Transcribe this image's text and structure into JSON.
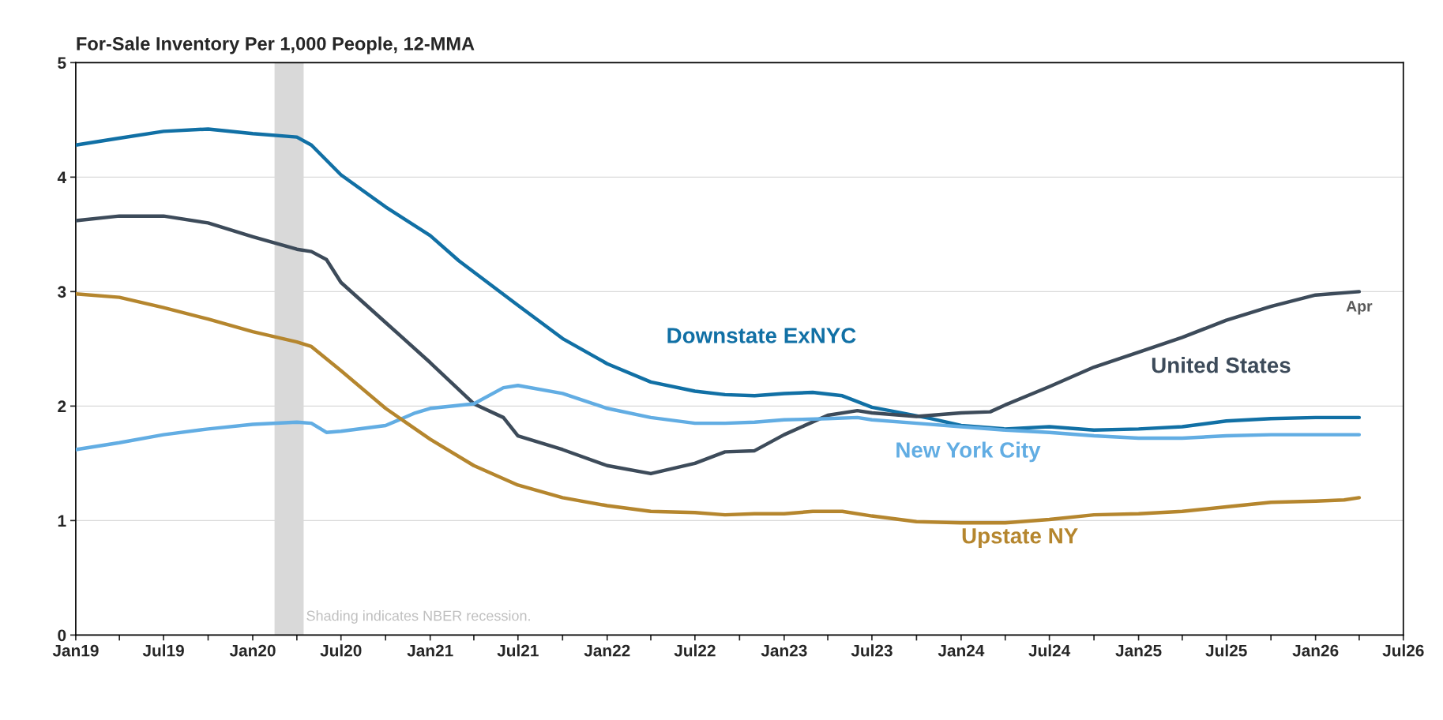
{
  "chart_data": {
    "type": "line",
    "title": "For-Sale Inventory Per 1,000 People, 12-MMA",
    "series": [
      {
        "name": "Downstate ExNYC",
        "color": "#1170a5",
        "x": [
          "2019-01",
          "2019-04",
          "2019-07",
          "2019-10",
          "2020-01",
          "2020-04",
          "2020-05",
          "2020-07",
          "2020-10",
          "2021-01",
          "2021-03",
          "2021-07",
          "2021-10",
          "2022-01",
          "2022-04",
          "2022-07",
          "2022-09",
          "2022-11",
          "2023-01",
          "2023-03",
          "2023-05",
          "2023-07",
          "2023-09",
          "2023-11",
          "2024-01",
          "2024-04",
          "2024-07",
          "2024-10",
          "2025-01",
          "2025-04",
          "2025-07",
          "2025-10",
          "2026-01",
          "2026-04"
        ],
        "values": [
          4.28,
          4.34,
          4.4,
          4.42,
          4.38,
          4.35,
          4.28,
          4.02,
          3.74,
          3.49,
          3.27,
          2.88,
          2.59,
          2.37,
          2.21,
          2.13,
          2.1,
          2.09,
          2.11,
          2.12,
          2.09,
          1.99,
          1.94,
          1.89,
          1.83,
          1.8,
          1.82,
          1.79,
          1.8,
          1.82,
          1.87,
          1.89,
          1.9,
          1.9
        ]
      },
      {
        "name": "United States",
        "color": "#3d4b5a",
        "x": [
          "2019-01",
          "2019-04",
          "2019-07",
          "2019-10",
          "2020-01",
          "2020-04",
          "2020-05",
          "2020-06",
          "2020-07",
          "2020-10",
          "2021-01",
          "2021-04",
          "2021-06",
          "2021-07",
          "2021-10",
          "2022-01",
          "2022-04",
          "2022-07",
          "2022-09",
          "2022-11",
          "2023-01",
          "2023-04",
          "2023-06",
          "2023-07",
          "2023-10",
          "2024-01",
          "2024-03",
          "2024-04",
          "2024-07",
          "2024-10",
          "2025-01",
          "2025-04",
          "2025-07",
          "2025-10",
          "2026-01",
          "2026-04"
        ],
        "values": [
          3.62,
          3.66,
          3.66,
          3.6,
          3.48,
          3.37,
          3.35,
          3.28,
          3.08,
          2.73,
          2.38,
          2.02,
          1.9,
          1.74,
          1.62,
          1.48,
          1.41,
          1.5,
          1.6,
          1.61,
          1.75,
          1.92,
          1.96,
          1.94,
          1.91,
          1.94,
          1.95,
          2.01,
          2.17,
          2.34,
          2.47,
          2.6,
          2.75,
          2.87,
          2.97,
          3.0
        ]
      },
      {
        "name": "New York City",
        "color": "#62ade3",
        "x": [
          "2019-01",
          "2019-04",
          "2019-07",
          "2019-10",
          "2020-01",
          "2020-04",
          "2020-05",
          "2020-06",
          "2020-07",
          "2020-10",
          "2020-12",
          "2021-01",
          "2021-04",
          "2021-06",
          "2021-07",
          "2021-10",
          "2022-01",
          "2022-04",
          "2022-07",
          "2022-09",
          "2022-11",
          "2023-01",
          "2023-04",
          "2023-06",
          "2023-07",
          "2023-10",
          "2024-01",
          "2024-04",
          "2024-07",
          "2024-10",
          "2025-01",
          "2025-04",
          "2025-07",
          "2025-10",
          "2026-01",
          "2026-04"
        ],
        "values": [
          1.62,
          1.68,
          1.75,
          1.8,
          1.84,
          1.86,
          1.85,
          1.77,
          1.78,
          1.83,
          1.94,
          1.98,
          2.02,
          2.16,
          2.18,
          2.11,
          1.98,
          1.9,
          1.85,
          1.85,
          1.86,
          1.88,
          1.89,
          1.9,
          1.88,
          1.85,
          1.82,
          1.79,
          1.77,
          1.74,
          1.72,
          1.72,
          1.74,
          1.75,
          1.75,
          1.75
        ]
      },
      {
        "name": "Upstate NY",
        "color": "#b5862e",
        "x": [
          "2019-01",
          "2019-04",
          "2019-07",
          "2019-10",
          "2020-01",
          "2020-04",
          "2020-05",
          "2020-07",
          "2020-10",
          "2021-01",
          "2021-04",
          "2021-07",
          "2021-10",
          "2022-01",
          "2022-04",
          "2022-07",
          "2022-09",
          "2022-11",
          "2023-01",
          "2023-03",
          "2023-05",
          "2023-07",
          "2023-10",
          "2024-01",
          "2024-04",
          "2024-07",
          "2024-10",
          "2025-01",
          "2025-04",
          "2025-07",
          "2025-10",
          "2026-01",
          "2026-03",
          "2026-04"
        ],
        "values": [
          2.98,
          2.95,
          2.86,
          2.76,
          2.65,
          2.56,
          2.52,
          2.31,
          1.98,
          1.71,
          1.48,
          1.31,
          1.2,
          1.13,
          1.08,
          1.07,
          1.05,
          1.06,
          1.06,
          1.08,
          1.08,
          1.04,
          0.99,
          0.98,
          0.98,
          1.01,
          1.05,
          1.06,
          1.08,
          1.12,
          1.16,
          1.17,
          1.18,
          1.2
        ]
      }
    ],
    "xlim": [
      "2019-01",
      "2026-07"
    ],
    "xticks": [
      {
        "value": "2019-01",
        "label": "Jan19"
      },
      {
        "value": "2019-04",
        "label": null
      },
      {
        "value": "2019-07",
        "label": "Jul19"
      },
      {
        "value": "2019-10",
        "label": null
      },
      {
        "value": "2020-01",
        "label": "Jan20"
      },
      {
        "value": "2020-04",
        "label": null
      },
      {
        "value": "2020-07",
        "label": "Jul20"
      },
      {
        "value": "2020-10",
        "label": null
      },
      {
        "value": "2021-01",
        "label": "Jan21"
      },
      {
        "value": "2021-04",
        "label": null
      },
      {
        "value": "2021-07",
        "label": "Jul21"
      },
      {
        "value": "2021-10",
        "label": null
      },
      {
        "value": "2022-01",
        "label": "Jan22"
      },
      {
        "value": "2022-04",
        "label": null
      },
      {
        "value": "2022-07",
        "label": "Jul22"
      },
      {
        "value": "2022-10",
        "label": null
      },
      {
        "value": "2023-01",
        "label": "Jan23"
      },
      {
        "value": "2023-04",
        "label": null
      },
      {
        "value": "2023-07",
        "label": "Jul23"
      },
      {
        "value": "2023-10",
        "label": null
      },
      {
        "value": "2024-01",
        "label": "Jan24"
      },
      {
        "value": "2024-04",
        "label": null
      },
      {
        "value": "2024-07",
        "label": "Jul24"
      },
      {
        "value": "2024-10",
        "label": null
      },
      {
        "value": "2025-01",
        "label": "Jan25"
      },
      {
        "value": "2025-04",
        "label": null
      },
      {
        "value": "2025-07",
        "label": "Jul25"
      },
      {
        "value": "2025-10",
        "label": null
      },
      {
        "value": "2026-01",
        "label": "Jan26"
      },
      {
        "value": "2026-04",
        "label": null
      },
      {
        "value": "2026-07",
        "label": "Jul26"
      }
    ],
    "ylim": [
      0,
      5
    ],
    "yticks": [
      0,
      1,
      2,
      3,
      4,
      5
    ],
    "grid": "y",
    "legend": false,
    "marker": "none",
    "line_style": "solid",
    "bands": [
      {
        "axis": "x",
        "from": "2020-02-15",
        "to": "2020-04-15",
        "label": "Shading indicates NBER recession.",
        "color": "#d9d9d9"
      }
    ],
    "annotations": [
      {
        "text": "Apr",
        "x": "2026-04",
        "y": 3.0
      }
    ]
  }
}
